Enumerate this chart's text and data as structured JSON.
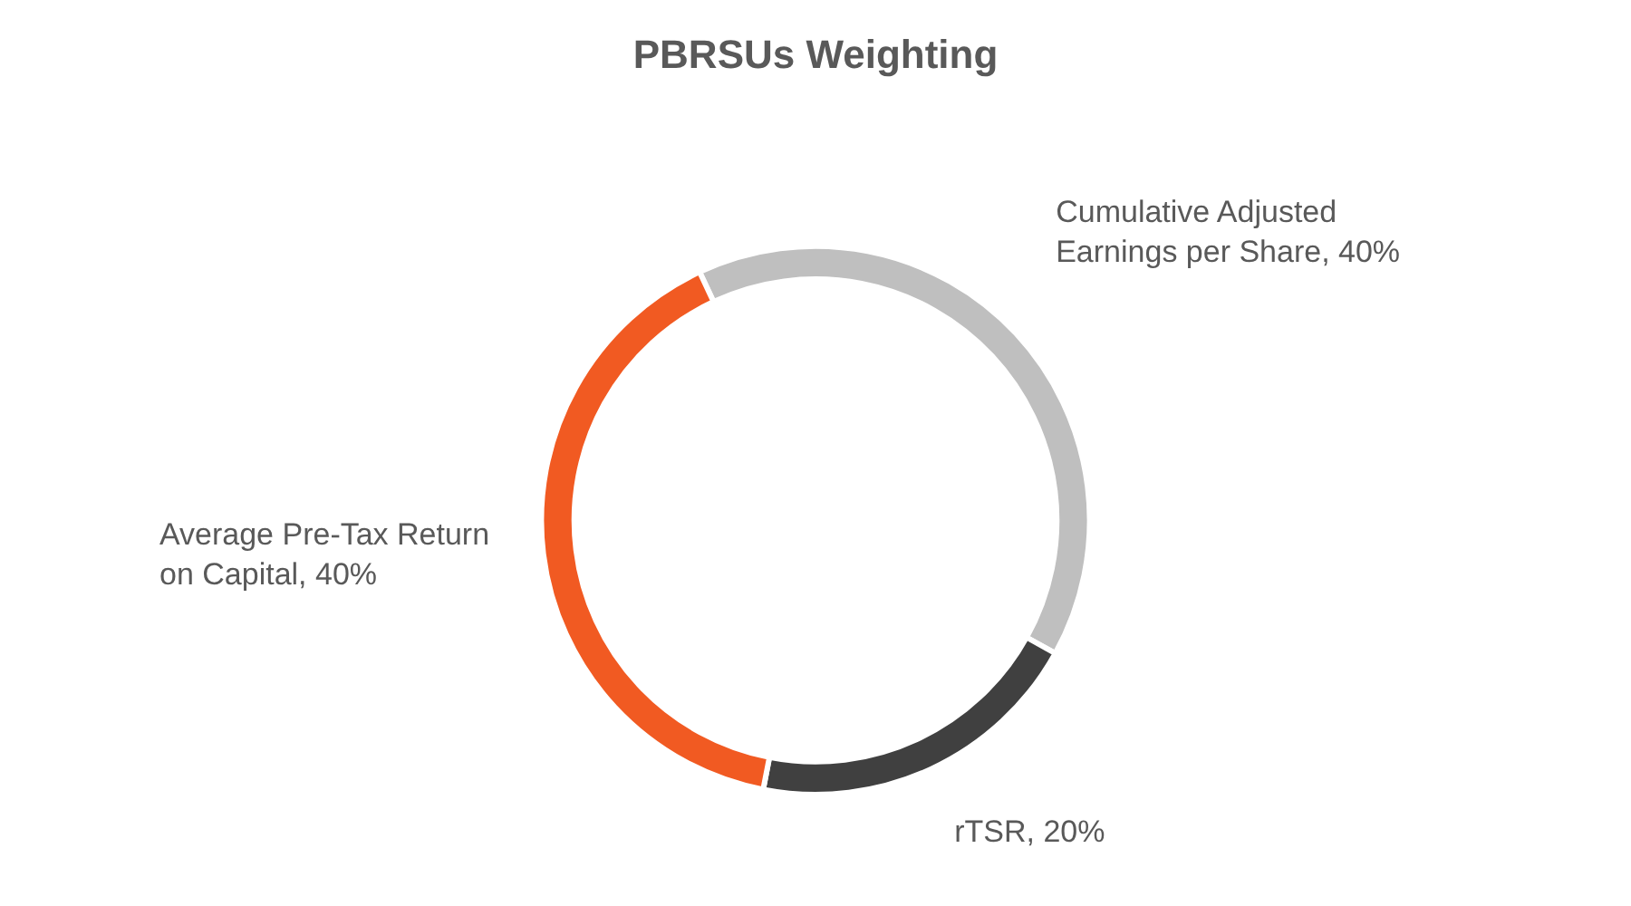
{
  "chart_data": {
    "type": "donut",
    "title": "PBRSUs Weighting",
    "categories": [
      "Cumulative Adjusted Earnings per Share",
      "rTSR",
      "Average Pre-Tax Return on Capital"
    ],
    "values": [
      40,
      20,
      40
    ],
    "colors": [
      "#bfbfbf",
      "#404040",
      "#f15a22"
    ],
    "value_labels": [
      "40%",
      "20%",
      "40%"
    ],
    "legend": false
  }
}
